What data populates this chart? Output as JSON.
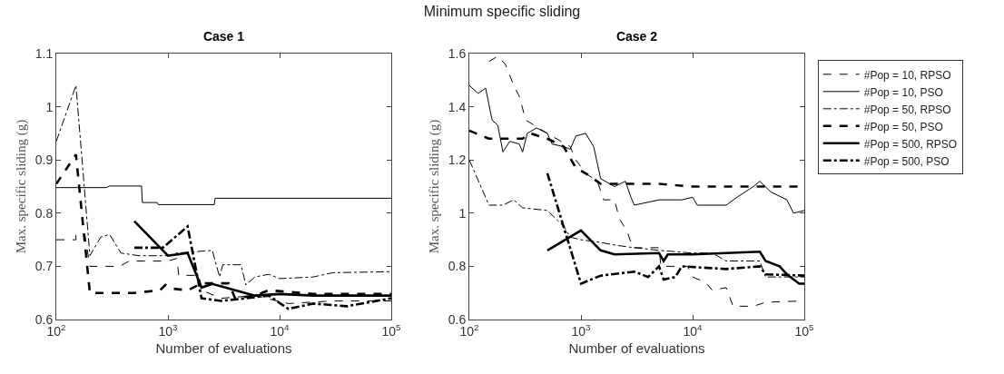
{
  "chart_data": [
    {
      "type": "line",
      "title": "Case 1",
      "xlabel": "Number of evaluations",
      "ylabel": "Max. specific sliding (g)",
      "annotations": [
        "Minimum specific sliding"
      ],
      "log": "x",
      "grid": false,
      "legend": false,
      "marker": "none",
      "xlim": [
        100,
        100000
      ],
      "xticks": [
        {
          "value": 100,
          "label": "10$^{2}$"
        },
        {
          "value": 1000,
          "label": "10$^{3}$"
        },
        {
          "value": 10000,
          "label": "10$^{4}$"
        },
        {
          "value": 100000,
          "label": "10$^{5}$"
        }
      ],
      "ylim": [
        0.6,
        1.1
      ],
      "yticks": [
        0.6,
        0.7,
        0.8,
        0.9,
        1,
        1.1
      ],
      "series": [
        {
          "color": "#000000",
          "line_style": "dashed",
          "x": [
            100,
            150,
            150,
            180,
            200,
            370,
            450,
            1000,
            1200,
            1250,
            1900,
            2000,
            3000,
            6000,
            12000,
            30000,
            100000
          ],
          "values": [
            0.75,
            0.75,
            0.76,
            0.76,
            0.7,
            0.7,
            0.71,
            0.71,
            0.715,
            0.683,
            0.683,
            0.655,
            0.64,
            0.645,
            0.63,
            0.635,
            0.635
          ]
        },
        {
          "color": "#000000",
          "line_style": "solid",
          "x": [
            100,
            280,
            300,
            580,
            590,
            800,
            820,
            2600,
            2650,
            100000
          ],
          "values": [
            0.848,
            0.848,
            0.851,
            0.851,
            0.82,
            0.82,
            0.816,
            0.816,
            0.828,
            0.828
          ]
        },
        {
          "color": "#000000",
          "line_style": "dashdot",
          "x": [
            100,
            150,
            200,
            250,
            300,
            380,
            550,
            1000,
            1200,
            2500,
            2900,
            3100,
            4500,
            5000,
            6000,
            8000,
            10000,
            20000,
            30000,
            100000
          ],
          "values": [
            0.935,
            1.04,
            0.72,
            0.755,
            0.76,
            0.725,
            0.72,
            0.72,
            0.725,
            0.73,
            0.68,
            0.703,
            0.703,
            0.665,
            0.68,
            0.685,
            0.677,
            0.68,
            0.688,
            0.69
          ]
        },
        {
          "color": "#000000",
          "line_style": "dashed",
          "x": [
            100,
            150,
            200,
            500,
            850,
            950,
            1100,
            1500,
            2000,
            3500,
            4000,
            6000,
            8000,
            20000,
            100000
          ],
          "values": [
            0.855,
            0.91,
            0.65,
            0.65,
            0.655,
            0.665,
            0.658,
            0.655,
            0.668,
            0.668,
            0.64,
            0.645,
            0.655,
            0.648,
            0.648
          ]
        },
        {
          "color": "#000000",
          "line_style": "solid",
          "x": [
            500,
            1000,
            1500,
            2000,
            2500,
            4000,
            6000,
            10000,
            20000,
            100000
          ],
          "values": [
            0.785,
            0.72,
            0.725,
            0.66,
            0.667,
            0.655,
            0.645,
            0.648,
            0.645,
            0.645
          ]
        },
        {
          "color": "#000000",
          "line_style": "dashdot",
          "x": [
            500,
            900,
            1500,
            2000,
            3000,
            5000,
            8000,
            12000,
            20000,
            40000,
            100000
          ],
          "values": [
            0.735,
            0.735,
            0.775,
            0.64,
            0.635,
            0.64,
            0.645,
            0.62,
            0.63,
            0.625,
            0.64
          ]
        }
      ]
    },
    {
      "type": "line",
      "title": "Case 2",
      "xlabel": "Number of evaluations",
      "ylabel": "Max. specific sliding (g)",
      "log": "x",
      "grid": false,
      "legend": "right",
      "marker": "none",
      "xlim": [
        100,
        100000
      ],
      "xticks": [
        {
          "value": 100,
          "label": "10$^{2}$"
        },
        {
          "value": 1000,
          "label": "10$^{3}$"
        },
        {
          "value": 10000,
          "label": "10$^{4}$"
        },
        {
          "value": 100000,
          "label": "10$^{5}$"
        }
      ],
      "ylim": [
        0.6,
        1.6
      ],
      "yticks": [
        0.6,
        0.8,
        1,
        1.2,
        1.4,
        1.6
      ],
      "series": [
        {
          "name": "#Pop = 10, RPSO",
          "color": "#000000",
          "line_style": "dashed",
          "x": [
            150,
            180,
            210,
            250,
            280,
            320,
            500,
            800,
            900,
            1100,
            1400,
            1600,
            2000,
            2200,
            2600,
            2900,
            5000,
            5200,
            9000,
            10000,
            13000,
            15000,
            20000,
            23000,
            35000,
            45000,
            100000
          ],
          "values": [
            1.57,
            1.59,
            1.56,
            1.48,
            1.44,
            1.35,
            1.3,
            1.25,
            1.2,
            1.15,
            1.12,
            1.05,
            1.05,
            0.98,
            0.93,
            0.87,
            0.87,
            0.8,
            0.8,
            0.76,
            0.74,
            0.71,
            0.72,
            0.65,
            0.65,
            0.665,
            0.67
          ]
        },
        {
          "name": "#Pop = 10, PSO",
          "color": "#000000",
          "line_style": "solid",
          "x": [
            100,
            120,
            140,
            160,
            180,
            200,
            230,
            280,
            300,
            330,
            400,
            500,
            550,
            700,
            800,
            900,
            1100,
            1300,
            1500,
            2000,
            2500,
            2800,
            3000,
            5000,
            8000,
            10000,
            11000,
            20000,
            25000,
            35000,
            40000,
            50000,
            70000,
            80000,
            100000
          ],
          "values": [
            1.48,
            1.45,
            1.47,
            1.35,
            1.33,
            1.23,
            1.27,
            1.26,
            1.23,
            1.3,
            1.32,
            1.3,
            1.26,
            1.25,
            1.24,
            1.29,
            1.3,
            1.25,
            1.13,
            1.1,
            1.12,
            1.06,
            1.03,
            1.05,
            1.05,
            1.06,
            1.03,
            1.03,
            1.06,
            1.1,
            1.12,
            1.08,
            1.05,
            1,
            1.01
          ]
        },
        {
          "name": "#Pop = 50, RPSO",
          "color": "#000000",
          "line_style": "dashdot",
          "x": [
            100,
            150,
            200,
            250,
            300,
            500,
            700,
            800,
            1000,
            1500,
            2000,
            3000,
            5000,
            10000,
            15000,
            20000,
            40000,
            45000,
            100000
          ],
          "values": [
            1.2,
            1.03,
            1.03,
            1.05,
            1.02,
            1.01,
            0.95,
            0.91,
            0.9,
            0.89,
            0.88,
            0.87,
            0.86,
            0.85,
            0.85,
            0.82,
            0.82,
            0.76,
            0.76
          ]
        },
        {
          "name": "#Pop = 50, PSO",
          "color": "#000000",
          "line_style": "dashed",
          "x": [
            100,
            150,
            300,
            350,
            500,
            700,
            900,
            1200,
            1500,
            2000,
            5000,
            10000,
            30000,
            100000
          ],
          "values": [
            1.31,
            1.28,
            1.28,
            1.3,
            1.28,
            1.25,
            1.17,
            1.14,
            1.11,
            1.11,
            1.11,
            1.1,
            1.1,
            1.1
          ]
        },
        {
          "name": "#Pop = 500, RPSO",
          "color": "#000000",
          "line_style": "solid",
          "x": [
            500,
            1000,
            1500,
            2000,
            5000,
            5500,
            6000,
            10000,
            40000,
            45000,
            60000,
            70000,
            90000,
            100000
          ],
          "values": [
            0.86,
            0.935,
            0.86,
            0.845,
            0.85,
            0.82,
            0.845,
            0.845,
            0.855,
            0.82,
            0.8,
            0.77,
            0.735,
            0.735
          ]
        },
        {
          "name": "#Pop = 500, PSO",
          "color": "#000000",
          "line_style": "dashdot",
          "x": [
            500,
            1000,
            1500,
            3000,
            4000,
            5000,
            5500,
            7000,
            8000,
            20000,
            40000,
            45000,
            100000
          ],
          "values": [
            1.15,
            0.735,
            0.765,
            0.78,
            0.76,
            0.8,
            0.75,
            0.76,
            0.8,
            0.79,
            0.8,
            0.77,
            0.765
          ]
        }
      ]
    }
  ]
}
